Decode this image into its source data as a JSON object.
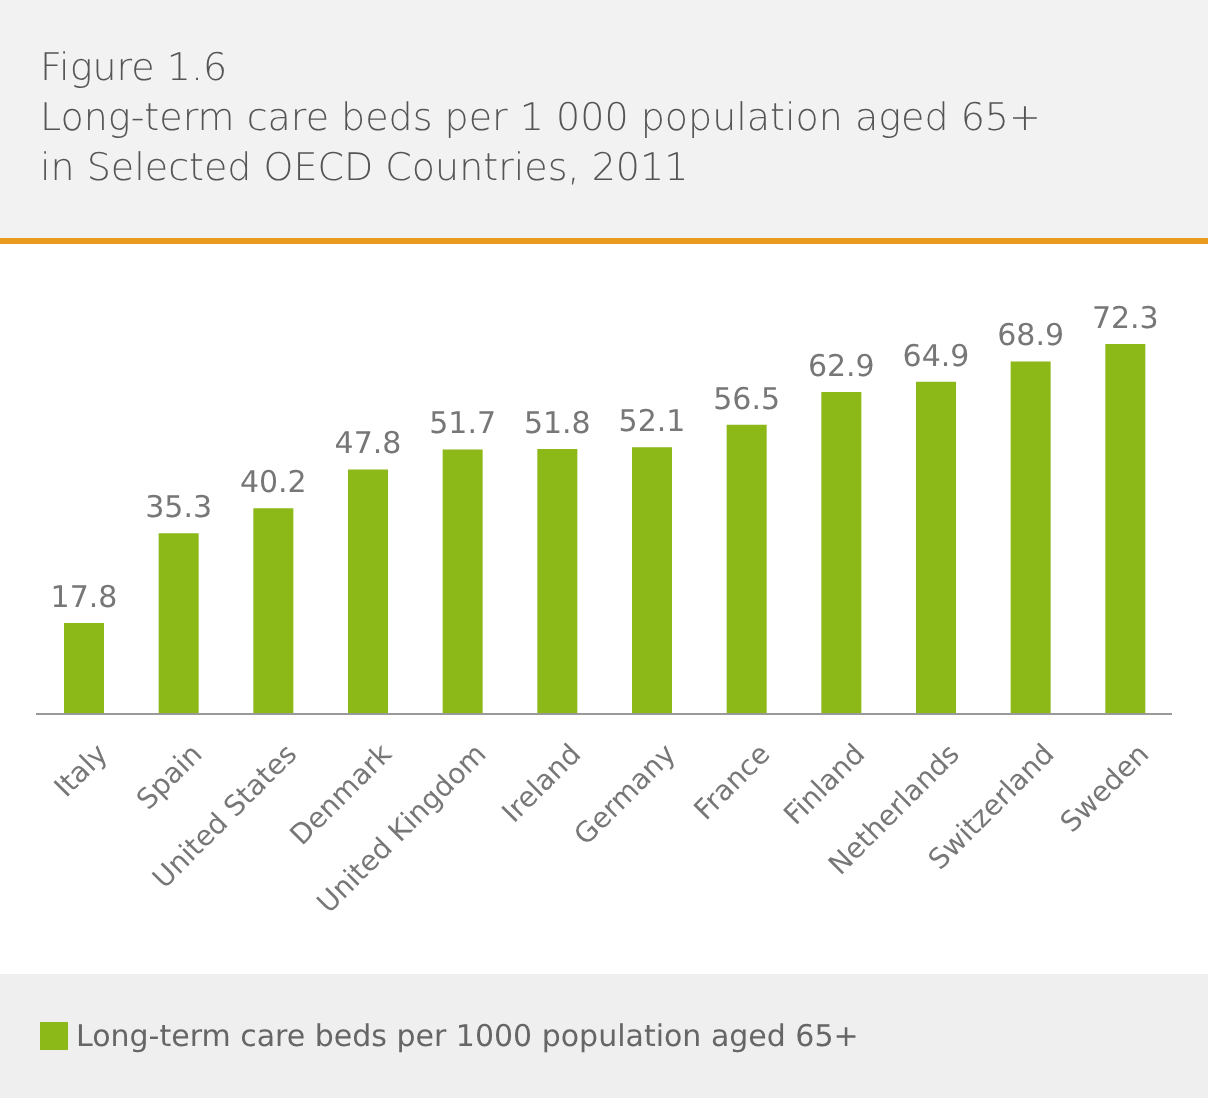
{
  "chart_data": {
    "type": "bar",
    "title": "Figure 1.6",
    "subtitle": "Long-term care beds per 1 000 population aged 65+\nin Selected OECD Countries, 2011",
    "categories": [
      "Italy",
      "Spain",
      "United States",
      "Denmark",
      "United Kingdom",
      "Ireland",
      "Germany",
      "France",
      "Finland",
      "Netherlands",
      "Switzerland",
      "Sweden"
    ],
    "series": [
      {
        "name": "Long-term care beds per 1000 population aged 65+",
        "color": "#8cb818",
        "values": [
          17.8,
          35.3,
          40.2,
          47.8,
          51.7,
          51.8,
          52.1,
          56.5,
          62.9,
          64.9,
          68.9,
          72.3
        ]
      }
    ],
    "data_labels": true,
    "legend": "bottom",
    "grid": false
  }
}
